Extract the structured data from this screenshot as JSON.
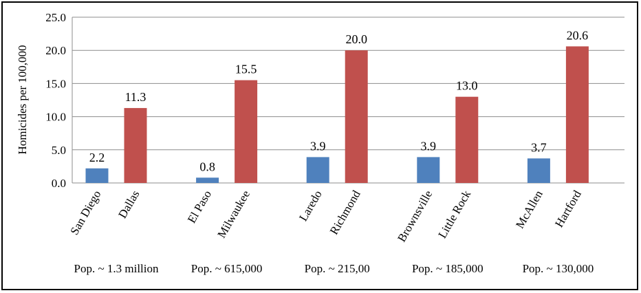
{
  "chart_data": {
    "type": "bar",
    "ylabel": "Homicides per 100,000",
    "ylim": [
      0,
      25
    ],
    "yticks": [
      "0.0",
      "5.0",
      "10.0",
      "15.0",
      "20.0",
      "25.0"
    ],
    "grid": true,
    "categories": [
      "San Diego",
      "Dallas",
      "El Paso",
      "Milwaukee",
      "Laredo",
      "Richmond",
      "Brownsville",
      "Little Rock",
      "McAllen",
      "Hartford"
    ],
    "values": [
      2.2,
      11.3,
      0.8,
      15.5,
      3.9,
      20.0,
      3.9,
      13.0,
      3.7,
      20.6
    ],
    "value_labels": [
      "2.2",
      "11.3",
      "0.8",
      "15.5",
      "3.9",
      "20.0",
      "3.9",
      "13.0",
      "3.7",
      "20.6"
    ],
    "bar_colors": [
      "#4f81bd",
      "#c0504d",
      "#4f81bd",
      "#c0504d",
      "#4f81bd",
      "#c0504d",
      "#4f81bd",
      "#c0504d",
      "#4f81bd",
      "#c0504d"
    ],
    "group_labels": [
      "Pop. ~ 1.3 million",
      "Pop. ~ 615,000",
      "Pop. ~ 215,00",
      "Pop. ~ 185,000",
      "Pop. ~ 130,000"
    ]
  }
}
